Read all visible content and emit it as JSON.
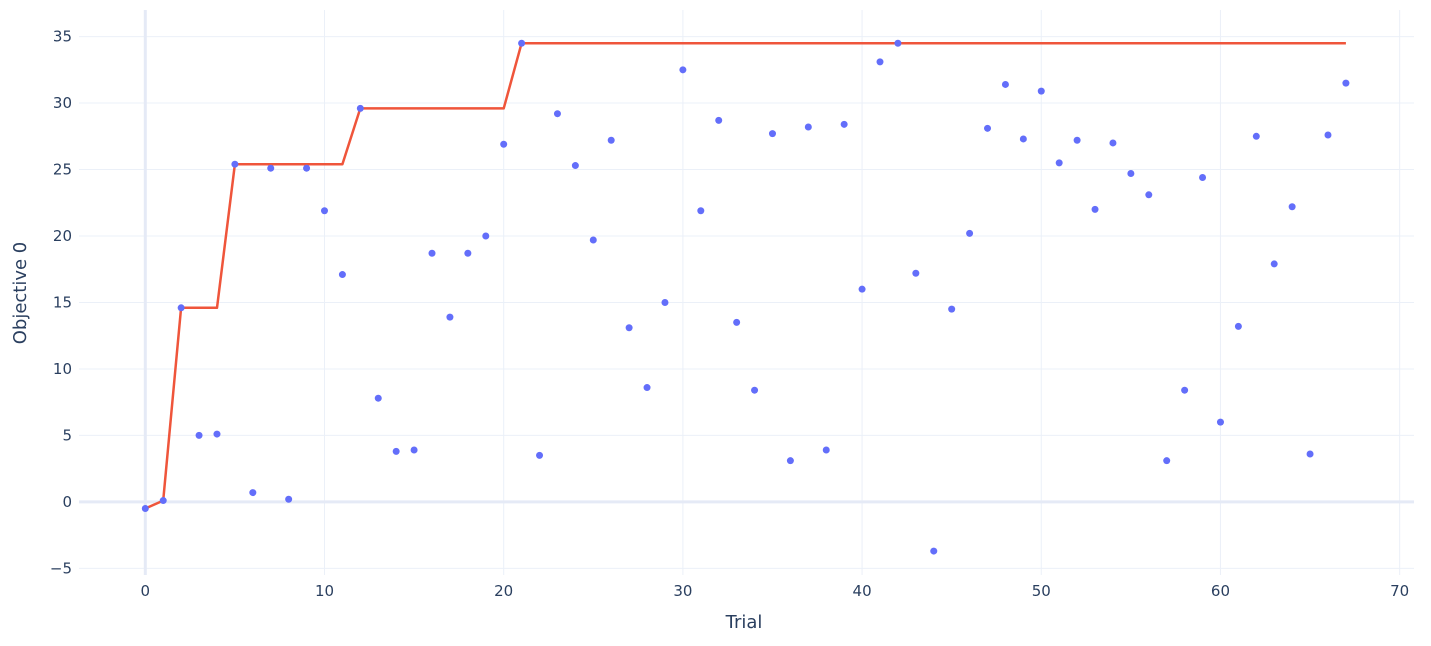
{
  "chart_data": {
    "type": "scatter",
    "xlabel": "Trial",
    "ylabel": "Objective 0",
    "xlim": [
      -3.7,
      70.8
    ],
    "ylim": [
      -5.5,
      37
    ],
    "xticks": [
      0,
      10,
      20,
      30,
      40,
      50,
      60,
      70
    ],
    "yticks": [
      -5,
      0,
      5,
      10,
      15,
      20,
      25,
      30,
      35
    ],
    "grid": true,
    "legend": "none",
    "colors": {
      "points": "#636efa",
      "best_line": "#ef553b",
      "grid": "#ebf0f8",
      "zeroline": "#e5eaf6",
      "text": "#2a3f5f"
    },
    "series": [
      {
        "type": "scatter",
        "x": [
          0,
          1,
          2,
          3,
          4,
          5,
          6,
          7,
          8,
          9,
          10,
          11,
          12,
          13,
          14,
          15,
          16,
          17,
          18,
          19,
          20,
          21,
          22,
          23,
          24,
          25,
          26,
          27,
          28,
          29,
          30,
          31,
          32,
          33,
          34,
          35,
          36,
          37,
          38,
          39,
          40,
          41,
          42,
          43,
          44,
          45,
          46,
          47,
          48,
          49,
          50,
          51,
          52,
          53,
          54,
          55,
          56,
          57,
          58,
          59,
          60,
          61,
          62,
          63,
          64,
          65,
          66,
          67
        ],
        "y": [
          -0.5,
          0.1,
          14.6,
          5.0,
          5.1,
          25.4,
          0.7,
          25.1,
          0.2,
          25.1,
          21.9,
          17.1,
          29.6,
          7.8,
          3.8,
          3.9,
          18.7,
          13.9,
          18.7,
          20.0,
          26.9,
          34.5,
          3.5,
          29.2,
          25.3,
          19.7,
          27.2,
          13.1,
          8.6,
          15.0,
          32.5,
          21.9,
          28.7,
          13.5,
          8.4,
          27.7,
          3.1,
          28.2,
          3.9,
          28.4,
          16.0,
          33.1,
          34.5,
          17.2,
          -3.7,
          14.5,
          20.2,
          28.1,
          31.4,
          27.3,
          30.9,
          25.5,
          27.2,
          22.0,
          27.0,
          24.7,
          23.1,
          3.1,
          8.4,
          24.4,
          6.0,
          13.2,
          27.5,
          17.9,
          22.2,
          3.6,
          27.6,
          31.5
        ]
      },
      {
        "type": "line",
        "x": [
          0,
          1,
          2,
          3,
          4,
          5,
          6,
          7,
          8,
          9,
          10,
          11,
          12,
          13,
          14,
          15,
          16,
          17,
          18,
          19,
          20,
          21,
          22,
          23,
          24,
          25,
          26,
          27,
          28,
          29,
          30,
          31,
          32,
          33,
          34,
          35,
          36,
          37,
          38,
          39,
          40,
          41,
          42,
          43,
          44,
          45,
          46,
          47,
          48,
          49,
          50,
          51,
          52,
          53,
          54,
          55,
          56,
          57,
          58,
          59,
          60,
          61,
          62,
          63,
          64,
          65,
          66,
          67
        ],
        "y": [
          -0.5,
          0.1,
          14.6,
          14.6,
          14.6,
          25.4,
          25.4,
          25.4,
          25.4,
          25.4,
          25.4,
          25.4,
          29.6,
          29.6,
          29.6,
          29.6,
          29.6,
          29.6,
          29.6,
          29.6,
          29.6,
          34.5,
          34.5,
          34.5,
          34.5,
          34.5,
          34.5,
          34.5,
          34.5,
          34.5,
          34.5,
          34.5,
          34.5,
          34.5,
          34.5,
          34.5,
          34.5,
          34.5,
          34.5,
          34.5,
          34.5,
          34.5,
          34.5,
          34.5,
          34.5,
          34.5,
          34.5,
          34.5,
          34.5,
          34.5,
          34.5,
          34.5,
          34.5,
          34.5,
          34.5,
          34.5,
          34.5,
          34.5,
          34.5,
          34.5,
          34.5,
          34.5,
          34.5,
          34.5,
          34.5,
          34.5,
          34.5,
          34.5
        ]
      }
    ]
  }
}
